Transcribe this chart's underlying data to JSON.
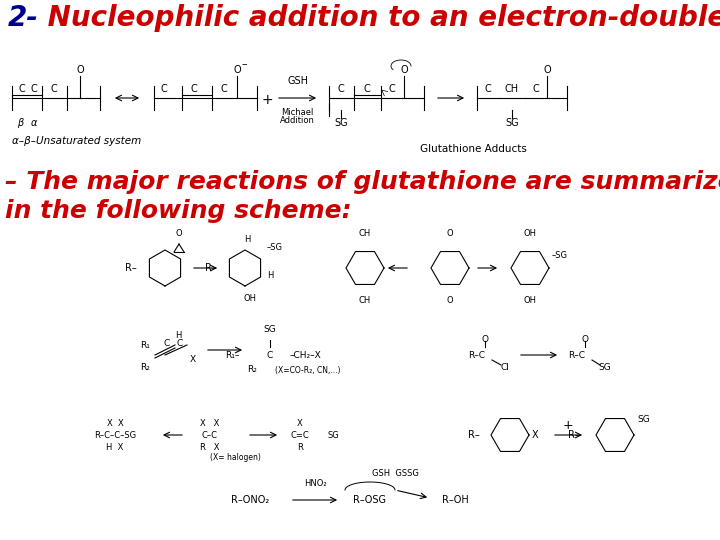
{
  "bg_color": "#ffffff",
  "title_num": "2-",
  "title_num_color": "#00008B",
  "title_rest": " Nucleophilic addition to an electron-double bond.",
  "title_rest_color": "#cc0000",
  "title_fontsize": 20,
  "subtitle": "– The major reactions of glutathione are summarized\nin the following scheme:",
  "subtitle_color": "#cc0000",
  "subtitle_fontsize": 18,
  "figsize": [
    7.2,
    5.4
  ],
  "dpi": 100
}
